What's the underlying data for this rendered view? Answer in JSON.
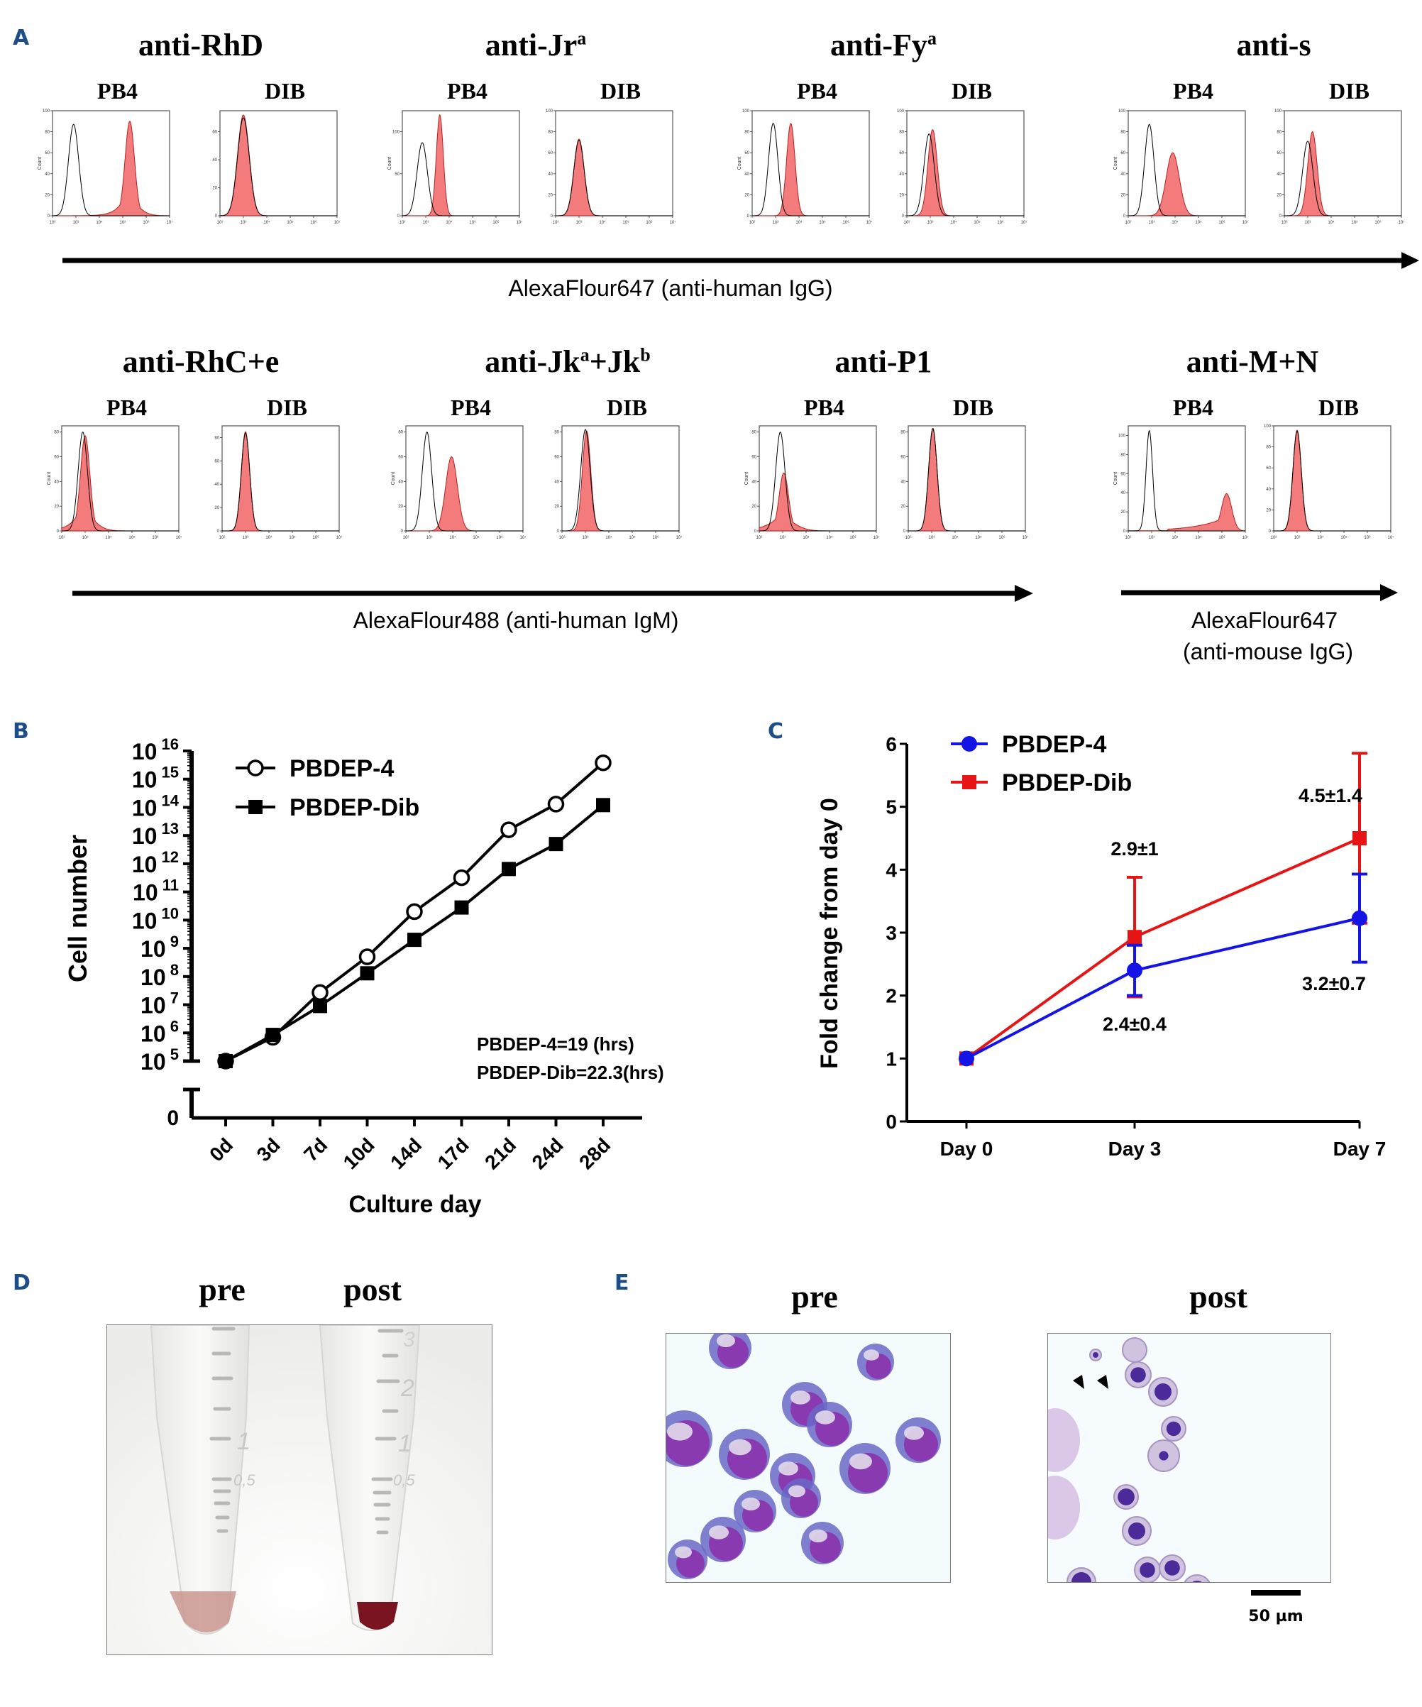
{
  "panels": {
    "A": "A",
    "B": "B",
    "C": "C",
    "D": "D",
    "E": "E"
  },
  "panel_a": {
    "sample_labels": [
      "PB4",
      "DIB"
    ],
    "y_axis_label": "Count",
    "x_ticks": [
      "10²",
      "10³",
      "10⁴",
      "10⁵",
      "10⁶",
      "10⁷"
    ],
    "colors": {
      "stained_fill": "#f47b7b",
      "stained_edge": "#b22222",
      "control_line": "#000000"
    },
    "row1_axis_label": "AlexaFlour647 (anti-human IgG)",
    "row2_axis_label": "AlexaFlour488 (anti-human IgM)",
    "row2b_axis_label_line1": "AlexaFlour647",
    "row2b_axis_label_line2": "(anti-mouse IgG)",
    "antibodies": [
      {
        "name": "anti-RhD",
        "base": "anti-RhD",
        "sup": "",
        "PB4": {
          "ymax": 100,
          "yticks": [
            0,
            20,
            40,
            60,
            80,
            100
          ],
          "control": {
            "peak_log": 2.9,
            "height": 87,
            "width": 0.22
          },
          "stained": {
            "peak_log": 5.3,
            "height": 90,
            "width": 0.2,
            "tail": 0.35
          }
        },
        "DIB": {
          "ymax": 75,
          "yticks": [
            0,
            20,
            40,
            60
          ],
          "control": {
            "peak_log": 3.0,
            "height": 70,
            "width": 0.25
          },
          "stained": {
            "peak_log": 3.0,
            "height": 72,
            "width": 0.25,
            "tail": 0
          }
        }
      },
      {
        "name": "anti-Jra",
        "base": "anti-Jr",
        "sup": "a",
        "PB4": {
          "ymax": 125,
          "yticks": [
            0,
            50,
            100
          ],
          "control": {
            "peak_log": 2.85,
            "height": 87,
            "width": 0.22
          },
          "stained": {
            "peak_log": 3.6,
            "height": 120,
            "width": 0.15,
            "tail": 0
          }
        },
        "DIB": {
          "ymax": 100,
          "yticks": [
            0,
            20,
            40,
            60,
            80,
            100
          ],
          "control": {
            "peak_log": 3.0,
            "height": 72,
            "width": 0.22
          },
          "stained": {
            "peak_log": 3.0,
            "height": 73,
            "width": 0.22,
            "tail": 0.1
          }
        }
      },
      {
        "name": "anti-Fya",
        "base": "anti-Fy",
        "sup": "a",
        "PB4": {
          "ymax": 100,
          "yticks": [
            0,
            20,
            40,
            60,
            80,
            100
          ],
          "control": {
            "peak_log": 2.9,
            "height": 88,
            "width": 0.2
          },
          "stained": {
            "peak_log": 3.65,
            "height": 88,
            "width": 0.18,
            "tail": 0
          }
        },
        "DIB": {
          "ymax": 100,
          "yticks": [
            0,
            20,
            40,
            60,
            80,
            100
          ],
          "control": {
            "peak_log": 2.95,
            "height": 78,
            "width": 0.22
          },
          "stained": {
            "peak_log": 3.1,
            "height": 82,
            "width": 0.2,
            "tail": 0.1
          }
        }
      },
      {
        "name": "anti-s",
        "base": "anti-s",
        "sup": "",
        "PB4": {
          "ymax": 100,
          "yticks": [
            0,
            20,
            40,
            60,
            80,
            100
          ],
          "control": {
            "peak_log": 2.9,
            "height": 87,
            "width": 0.2
          },
          "stained": {
            "peak_log": 3.9,
            "height": 60,
            "width": 0.28,
            "tail": 0
          }
        },
        "DIB": {
          "ymax": 100,
          "yticks": [
            0,
            20,
            40,
            60,
            80,
            100
          ],
          "control": {
            "peak_log": 3.0,
            "height": 71,
            "width": 0.22
          },
          "stained": {
            "peak_log": 3.2,
            "height": 80,
            "width": 0.2,
            "tail": 0.1
          }
        }
      },
      {
        "name": "anti-RhC+e",
        "base": "anti-RhC+e",
        "sup": "",
        "PB4": {
          "ymax": 85,
          "yticks": [
            0,
            20,
            40,
            60,
            80
          ],
          "control": {
            "peak_log": 2.9,
            "height": 80,
            "width": 0.2
          },
          "stained": {
            "peak_log": 3.0,
            "height": 77,
            "width": 0.2,
            "tail": 0.4
          }
        },
        "DIB": {
          "ymax": 90,
          "yticks": [
            0,
            20,
            40,
            60,
            80
          ],
          "control": {
            "peak_log": 3.0,
            "height": 84,
            "width": 0.18
          },
          "stained": {
            "peak_log": 3.0,
            "height": 85,
            "width": 0.18,
            "tail": 0
          }
        }
      },
      {
        "name": "anti-Jka+Jkb",
        "base": "anti-Jk",
        "sup": "a",
        "mid": "+Jk",
        "sup2": "b",
        "PB4": {
          "ymax": 85,
          "yticks": [
            0,
            20,
            40,
            60,
            80
          ],
          "control": {
            "peak_log": 2.9,
            "height": 80,
            "width": 0.2
          },
          "stained": {
            "peak_log": 3.95,
            "height": 60,
            "width": 0.25,
            "tail": 0
          }
        },
        "DIB": {
          "ymax": 85,
          "yticks": [
            0,
            20,
            40,
            60,
            80
          ],
          "control": {
            "peak_log": 3.0,
            "height": 82,
            "width": 0.2
          },
          "stained": {
            "peak_log": 3.05,
            "height": 81,
            "width": 0.18,
            "tail": 0
          }
        }
      },
      {
        "name": "anti-P1",
        "base": "anti-P1",
        "sup": "",
        "PB4": {
          "ymax": 85,
          "yticks": [
            0,
            20,
            40,
            60,
            80
          ],
          "control": {
            "peak_log": 2.9,
            "height": 80,
            "width": 0.2
          },
          "stained": {
            "peak_log": 3.05,
            "height": 47,
            "width": 0.2,
            "tail": 0.55
          }
        },
        "DIB": {
          "ymax": 85,
          "yticks": [
            0,
            20,
            40,
            60,
            80
          ],
          "control": {
            "peak_log": 3.05,
            "height": 83,
            "width": 0.18
          },
          "stained": {
            "peak_log": 3.05,
            "height": 83,
            "width": 0.18,
            "tail": 0
          }
        }
      },
      {
        "name": "anti-M+N",
        "base": "anti-M+N",
        "sup": "",
        "PB4": {
          "ymax": 110,
          "yticks": [
            0,
            20,
            40,
            60,
            80,
            100
          ],
          "control": {
            "peak_log": 2.9,
            "height": 105,
            "width": 0.14
          },
          "stained": {
            "peak_log": 6.2,
            "height": 39,
            "width": 0.22,
            "tail": 1.2
          }
        },
        "DIB": {
          "ymax": 100,
          "yticks": [
            0,
            20,
            40,
            60,
            80,
            100
          ],
          "control": {
            "peak_log": 3.0,
            "height": 95,
            "width": 0.18
          },
          "stained": {
            "peak_log": 3.0,
            "height": 96,
            "width": 0.18,
            "tail": 0
          }
        }
      }
    ]
  },
  "chart_data": [
    {
      "id": "B",
      "type": "line",
      "title": "",
      "xlabel": "Culture day",
      "ylabel": "Cell number",
      "y_scale": "log",
      "ylim": [
        100000,
        10000000000000000
      ],
      "y_break": true,
      "y_zero_label": "0",
      "categories": [
        "0d",
        "3d",
        "7d",
        "10d",
        "14d",
        "17d",
        "21d",
        "24d",
        "28d"
      ],
      "yticks": [
        "10^5",
        "10^6",
        "10^7",
        "10^8",
        "10^9",
        "10^10",
        "10^11",
        "10^12",
        "10^13",
        "10^14",
        "10^15",
        "10^16"
      ],
      "series": [
        {
          "name": "PBDEP-4",
          "marker": "open-circle",
          "values": [
            100000.0,
            700000.0,
            27000000.0,
            500000000.0,
            20000000000.0,
            320000000000.0,
            16000000000000.0,
            130000000000000.0,
            3800000000000000.0
          ]
        },
        {
          "name": "PBDEP-Dib",
          "marker": "filled-square",
          "values": [
            100000.0,
            850000.0,
            9000000.0,
            130000000.0,
            2000000000.0,
            28000000000.0,
            650000000000.0,
            5000000000000.0,
            120000000000000.0
          ]
        }
      ],
      "annotations": [
        "PBDEP-4=19 (hrs)",
        "PBDEP-Dib=22.3(hrs)"
      ],
      "legend": "top-left"
    },
    {
      "id": "C",
      "type": "line",
      "title": "",
      "xlabel": "",
      "ylabel": "Fold change from day 0",
      "ylim": [
        0,
        6
      ],
      "yticks": [
        0,
        1,
        2,
        3,
        4,
        5,
        6
      ],
      "categories": [
        "Day 0",
        "Day 3",
        "Day 7"
      ],
      "x_positions_days": [
        0,
        3,
        7
      ],
      "series": [
        {
          "name": "PBDEP-4",
          "color": "#1414e6",
          "marker": "circle",
          "values": [
            1.0,
            2.4,
            3.23
          ],
          "errors": [
            0,
            0.4,
            0.7
          ]
        },
        {
          "name": "PBDEP-Dib",
          "color": "#e61414",
          "marker": "square",
          "values": [
            1.0,
            2.93,
            4.5
          ],
          "errors": [
            0,
            0.95,
            1.35
          ]
        }
      ],
      "annotations": [
        {
          "text": "2.9±1",
          "series": "PBDEP-Dib",
          "day": "Day 3",
          "position": "above"
        },
        {
          "text": "2.4±0.4",
          "series": "PBDEP-4",
          "day": "Day 3",
          "position": "below"
        },
        {
          "text": "4.5±1.4",
          "series": "PBDEP-Dib",
          "day": "Day 7",
          "position": "above-left"
        },
        {
          "text": "3.2±0.7",
          "series": "PBDEP-4",
          "day": "Day 7",
          "position": "below-left"
        }
      ],
      "legend": "top-left"
    }
  ],
  "panel_d": {
    "labels": [
      "pre",
      "post"
    ],
    "tube_marks_pre": [
      "1",
      "0,5"
    ],
    "tube_marks_post": [
      "3",
      "2",
      "1",
      "0,5"
    ],
    "pellet_colors": {
      "pre": "#c9968f",
      "post": "#7a1420"
    }
  },
  "panel_e": {
    "labels": [
      "pre",
      "post"
    ],
    "scale_bar": "50 µm"
  }
}
